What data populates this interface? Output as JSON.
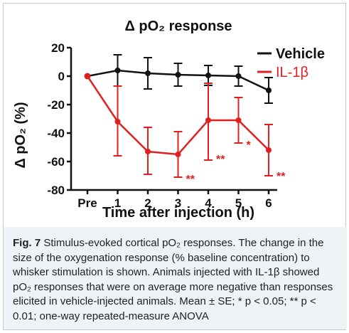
{
  "chart_data": {
    "type": "line",
    "title": "Δ pO₂ response",
    "xlabel": "Time after injection (h)",
    "ylabel": "Δ pO₂ (%)",
    "categories": [
      "Pre",
      "1",
      "2",
      "3",
      "4",
      "5",
      "6"
    ],
    "ylim": [
      -80,
      20
    ],
    "yticks": [
      20,
      0,
      -20,
      -40,
      -60,
      -80
    ],
    "grid": false,
    "legend_position": "top-right",
    "series": [
      {
        "name": "Vehicle",
        "color": "#111111",
        "values": [
          0,
          4,
          2,
          1,
          0.5,
          0,
          -10
        ],
        "err_upper": [
          0,
          11,
          11,
          8,
          7,
          7,
          9
        ],
        "err_lower": [
          0,
          11,
          11,
          8,
          7,
          7,
          9
        ]
      },
      {
        "name": "IL-1β",
        "color": "#e02020",
        "values": [
          0,
          -32,
          -53,
          -55,
          -31,
          -31,
          -52
        ],
        "err_upper": [
          0,
          25,
          17,
          16,
          26,
          16,
          18
        ],
        "err_lower": [
          0,
          24,
          16,
          16,
          28,
          16,
          18
        ]
      }
    ],
    "annotations": [
      {
        "text": "**",
        "x": "3",
        "y": -72,
        "color": "#e02020"
      },
      {
        "text": "**",
        "x": "4",
        "y": -58,
        "color": "#e02020"
      },
      {
        "text": "*",
        "x": "5",
        "y": -48,
        "color": "#e02020"
      },
      {
        "text": "**",
        "x": "6",
        "y": -70,
        "color": "#e02020"
      }
    ]
  },
  "caption": {
    "label": "Fig. 7",
    "text": "Stimulus-evoked cortical pO₂ responses. The change in the size of the oxygenation response (% baseline concentration) to whisker stimulation is shown. Animals injected with IL-1β showed pO₂ responses that were on average more negative than responses elicited in vehicle-injected animals. Mean ± SE; * p < 0.05; ** p < 0.01; one-way repeated-measure ANOVA"
  }
}
